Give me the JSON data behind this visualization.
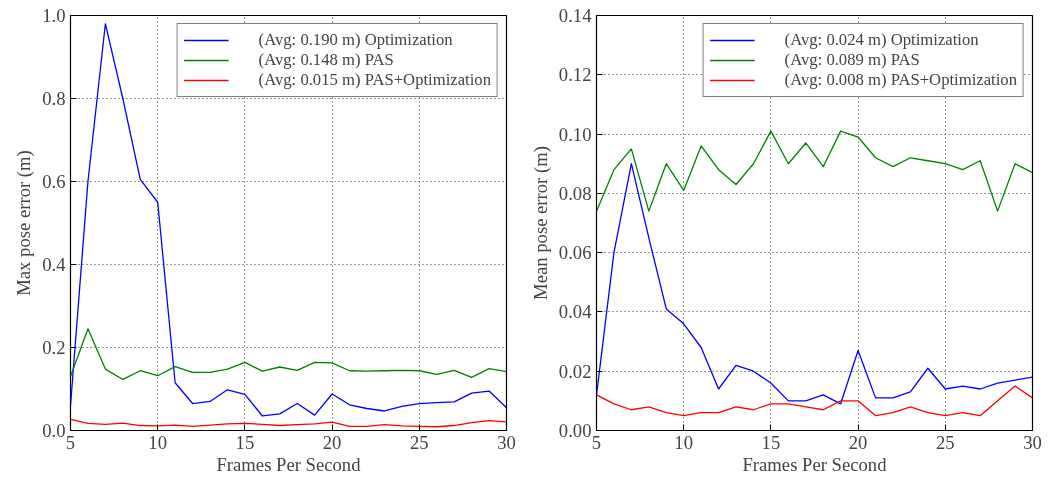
{
  "chart_data": [
    {
      "type": "line",
      "xlabel": "Frames Per Second",
      "ylabel": "Max pose error (m)",
      "x": [
        5,
        6,
        7,
        8,
        9,
        10,
        11,
        12,
        13,
        14,
        15,
        16,
        17,
        18,
        19,
        20,
        21,
        22,
        23,
        24,
        25,
        26,
        27,
        28,
        29,
        30
      ],
      "xlim": [
        5,
        30
      ],
      "xticks": [
        5,
        10,
        15,
        20,
        25,
        30
      ],
      "ylim": [
        0,
        1.0
      ],
      "yticks": [
        {
          "value": 0,
          "label": "0.0"
        },
        {
          "value": 0.2,
          "label": "0.2"
        },
        {
          "value": 0.4,
          "label": "0.4"
        },
        {
          "value": 0.6,
          "label": "0.6"
        },
        {
          "value": 0.8,
          "label": "0.8"
        },
        {
          "value": 1.0,
          "label": "1.0"
        }
      ],
      "grid": true,
      "legend": "top right",
      "line_style": "solid",
      "marker": "none",
      "series": [
        {
          "name": "(Avg: 0.190 m) Optimization",
          "color": "#0000ff",
          "values": [
            0.06,
            0.6,
            0.98,
            0.8,
            0.605,
            0.55,
            0.115,
            0.065,
            0.07,
            0.098,
            0.087,
            0.035,
            0.04,
            0.065,
            0.037,
            0.088,
            0.062,
            0.053,
            0.047,
            0.058,
            0.065,
            0.067,
            0.069,
            0.09,
            0.095,
            0.055
          ]
        },
        {
          "name": "(Avg: 0.148 m) PAS",
          "color": "#008000",
          "values": [
            0.13,
            0.245,
            0.148,
            0.123,
            0.144,
            0.132,
            0.154,
            0.14,
            0.14,
            0.148,
            0.164,
            0.143,
            0.153,
            0.145,
            0.164,
            0.163,
            0.144,
            0.143,
            0.144,
            0.145,
            0.144,
            0.135,
            0.145,
            0.128,
            0.149,
            0.142
          ]
        },
        {
          "name": "(Avg: 0.015 m) PAS+Optimization",
          "color": "#ff0000",
          "values": [
            0.027,
            0.017,
            0.015,
            0.018,
            0.012,
            0.011,
            0.013,
            0.01,
            0.013,
            0.016,
            0.017,
            0.015,
            0.012,
            0.014,
            0.016,
            0.02,
            0.01,
            0.01,
            0.014,
            0.011,
            0.01,
            0.009,
            0.012,
            0.019,
            0.024,
            0.021
          ]
        }
      ]
    },
    {
      "type": "line",
      "xlabel": "Frames Per Second",
      "ylabel": "Mean pose error (m)",
      "x": [
        5,
        6,
        7,
        8,
        9,
        10,
        11,
        12,
        13,
        14,
        15,
        16,
        17,
        18,
        19,
        20,
        21,
        22,
        23,
        24,
        25,
        26,
        27,
        28,
        29,
        30
      ],
      "xlim": [
        5,
        30
      ],
      "xticks": [
        5,
        10,
        15,
        20,
        25,
        30
      ],
      "ylim": [
        0,
        0.14
      ],
      "yticks": [
        {
          "value": 0,
          "label": "0.00"
        },
        {
          "value": 0.02,
          "label": "0.02"
        },
        {
          "value": 0.04,
          "label": "0.04"
        },
        {
          "value": 0.06,
          "label": "0.06"
        },
        {
          "value": 0.08,
          "label": "0.08"
        },
        {
          "value": 0.1,
          "label": "0.10"
        },
        {
          "value": 0.12,
          "label": "0.12"
        },
        {
          "value": 0.14,
          "label": "0.14"
        }
      ],
      "grid": true,
      "legend": "top right",
      "line_style": "solid",
      "marker": "none",
      "series": [
        {
          "name": "(Avg: 0.024 m) Optimization",
          "color": "#0000ff",
          "values": [
            0.012,
            0.06,
            0.09,
            0.065,
            0.041,
            0.036,
            0.028,
            0.014,
            0.022,
            0.02,
            0.016,
            0.01,
            0.01,
            0.012,
            0.009,
            0.027,
            0.011,
            0.011,
            0.013,
            0.021,
            0.014,
            0.015,
            0.014,
            0.016,
            0.017,
            0.018
          ]
        },
        {
          "name": "(Avg: 0.089 m) PAS",
          "color": "#008000",
          "values": [
            0.074,
            0.088,
            0.095,
            0.074,
            0.09,
            0.081,
            0.096,
            0.088,
            0.083,
            0.09,
            0.101,
            0.09,
            0.097,
            0.089,
            0.101,
            0.099,
            0.092,
            0.089,
            0.092,
            0.091,
            0.09,
            0.088,
            0.091,
            0.074,
            0.09,
            0.087
          ]
        },
        {
          "name": "(Avg: 0.008 m) PAS+Optimization",
          "color": "#ff0000",
          "values": [
            0.012,
            0.009,
            0.007,
            0.008,
            0.006,
            0.005,
            0.006,
            0.006,
            0.008,
            0.007,
            0.009,
            0.009,
            0.008,
            0.007,
            0.01,
            0.01,
            0.005,
            0.006,
            0.008,
            0.006,
            0.005,
            0.006,
            0.005,
            0.01,
            0.015,
            0.011
          ]
        }
      ]
    }
  ]
}
